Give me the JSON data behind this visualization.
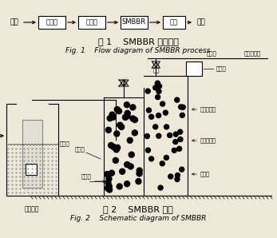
{
  "fig1_title_cn": "图 1    SMBBR 工艺流程",
  "fig1_title_en": "Fig. 1    Flow diagram of SMBBR process",
  "fig2_title_cn": "图 2    SMBBR 简图",
  "fig2_title_en": "Fig. 2    Schematic diagram of SMBBR",
  "flow_boxes": [
    "粗格栅",
    "提升泵",
    "SMBBR",
    "滽水"
  ],
  "flow_inlet": "进水",
  "flow_outlet": "出水",
  "label_valve1": "阀门",
  "label_valve2": "阀门",
  "label_airpipe": "空气管",
  "label_blower": "自旋风机房",
  "label_weir": "溢流槽",
  "label_high_drain": "高位排水阀",
  "label_mid_drain": "中位排水阀",
  "label_mud_drain": "排泥阀",
  "label_inlet_pipe": "进水管",
  "label_aer_pipe": "曝气管",
  "label_pump": "污水泵",
  "label_pump_room": "污水泵房",
  "bg_color": "#ede8d8"
}
